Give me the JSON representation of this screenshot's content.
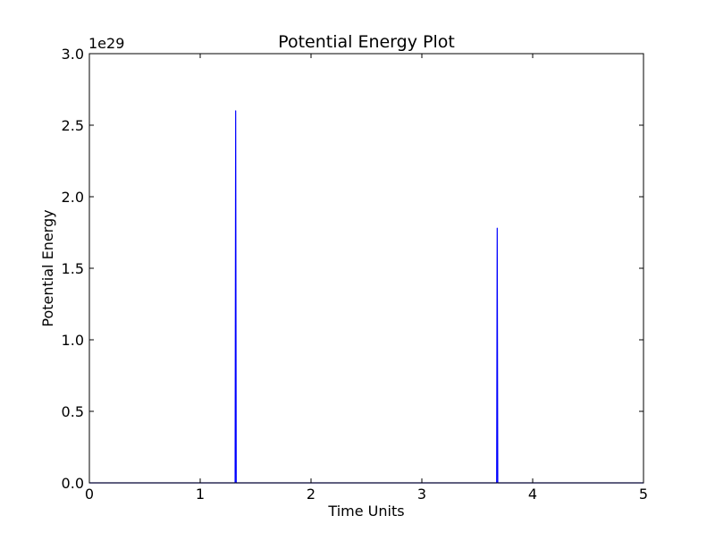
{
  "chart_data": {
    "type": "line",
    "title": "Potential Energy Plot",
    "xlabel": "Time Units",
    "ylabel": "Potential Energy",
    "y_offset_label": "1e29",
    "xlim": [
      0,
      5
    ],
    "ylim": [
      0,
      3.0
    ],
    "y_scale_factor": 1e+29,
    "grid": false,
    "legend": "none",
    "x_ticks": [
      0,
      1,
      2,
      3,
      4,
      5
    ],
    "x_tick_labels": [
      "0",
      "1",
      "2",
      "3",
      "4",
      "5"
    ],
    "y_ticks": [
      0,
      0.5,
      1.0,
      1.5,
      2.0,
      2.5,
      3.0
    ],
    "y_tick_labels": [
      "0.0",
      "0.5",
      "1.0",
      "1.5",
      "2.0",
      "2.5",
      "3.0"
    ],
    "series": [
      {
        "color": "#0000ff",
        "points": [
          [
            0.0,
            0.0
          ],
          [
            1.315,
            0.0
          ],
          [
            1.32,
            2.6
          ],
          [
            1.325,
            0.0
          ],
          [
            3.675,
            0.0
          ],
          [
            3.68,
            1.78
          ],
          [
            3.685,
            0.0
          ],
          [
            5.0,
            0.0
          ]
        ]
      }
    ]
  }
}
